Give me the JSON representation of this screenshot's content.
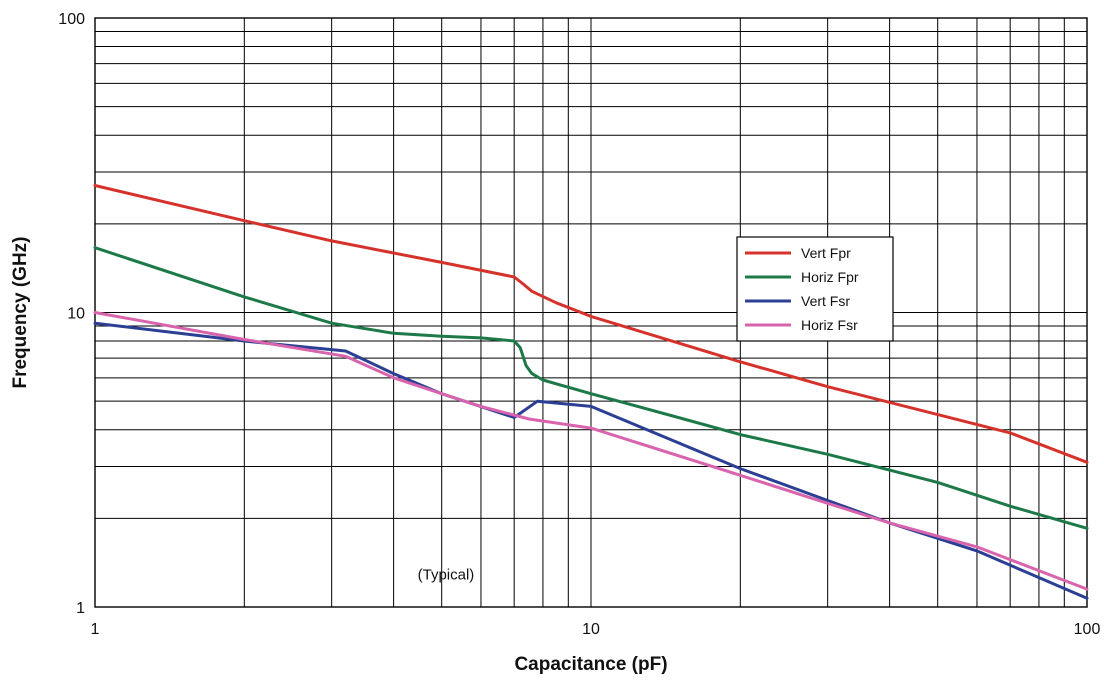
{
  "chart_data": {
    "type": "line",
    "xlabel": "Capacitance (pF)",
    "ylabel": "Frequency (GHz)",
    "xscale": "log",
    "yscale": "log",
    "xlim": [
      1,
      100
    ],
    "ylim": [
      1,
      100
    ],
    "x_tick_labels": [
      "1",
      "10",
      "100"
    ],
    "y_tick_labels": [
      "1",
      "10",
      "100"
    ],
    "grid": true,
    "legend_position": "right",
    "annotation": "(Typical)",
    "series": [
      {
        "name": "Vert Fpr",
        "color": "#d6322c",
        "points": [
          [
            1,
            27
          ],
          [
            2,
            20.5
          ],
          [
            3,
            17.5
          ],
          [
            5,
            14.8
          ],
          [
            7,
            13.2
          ],
          [
            7.3,
            12.5
          ],
          [
            7.6,
            11.8
          ],
          [
            8.5,
            10.8
          ],
          [
            10,
            9.7
          ],
          [
            20,
            6.8
          ],
          [
            30,
            5.6
          ],
          [
            50,
            4.5
          ],
          [
            70,
            3.9
          ],
          [
            100,
            3.1
          ]
        ]
      },
      {
        "name": "Horiz Fpr",
        "color": "#1d7a48",
        "points": [
          [
            1,
            16.6
          ],
          [
            2,
            11.3
          ],
          [
            3,
            9.2
          ],
          [
            4,
            8.5
          ],
          [
            5,
            8.3
          ],
          [
            6,
            8.2
          ],
          [
            7,
            8.0
          ],
          [
            7.2,
            7.6
          ],
          [
            7.4,
            6.6
          ],
          [
            7.6,
            6.2
          ],
          [
            8,
            5.9
          ],
          [
            10,
            5.3
          ],
          [
            15,
            4.4
          ],
          [
            20,
            3.85
          ],
          [
            30,
            3.3
          ],
          [
            50,
            2.65
          ],
          [
            70,
            2.2
          ],
          [
            100,
            1.85
          ]
        ]
      },
      {
        "name": "Vert Fsr",
        "color": "#2b3f94",
        "points": [
          [
            1,
            9.2
          ],
          [
            2,
            8.0
          ],
          [
            3.2,
            7.4
          ],
          [
            4,
            6.2
          ],
          [
            5,
            5.3
          ],
          [
            7,
            4.4
          ],
          [
            7.8,
            5.0
          ],
          [
            10,
            4.8
          ],
          [
            20,
            2.95
          ],
          [
            30,
            2.3
          ],
          [
            40,
            1.93
          ],
          [
            60,
            1.55
          ],
          [
            100,
            1.07
          ]
        ]
      },
      {
        "name": "Horiz Fsr",
        "color": "#d864ae",
        "points": [
          [
            1,
            10.0
          ],
          [
            2,
            8.1
          ],
          [
            3.2,
            7.1
          ],
          [
            4,
            6.0
          ],
          [
            5,
            5.3
          ],
          [
            6,
            4.8
          ],
          [
            7.5,
            4.35
          ],
          [
            10,
            4.05
          ],
          [
            20,
            2.8
          ],
          [
            30,
            2.25
          ],
          [
            40,
            1.93
          ],
          [
            60,
            1.6
          ],
          [
            100,
            1.15
          ]
        ]
      }
    ]
  }
}
